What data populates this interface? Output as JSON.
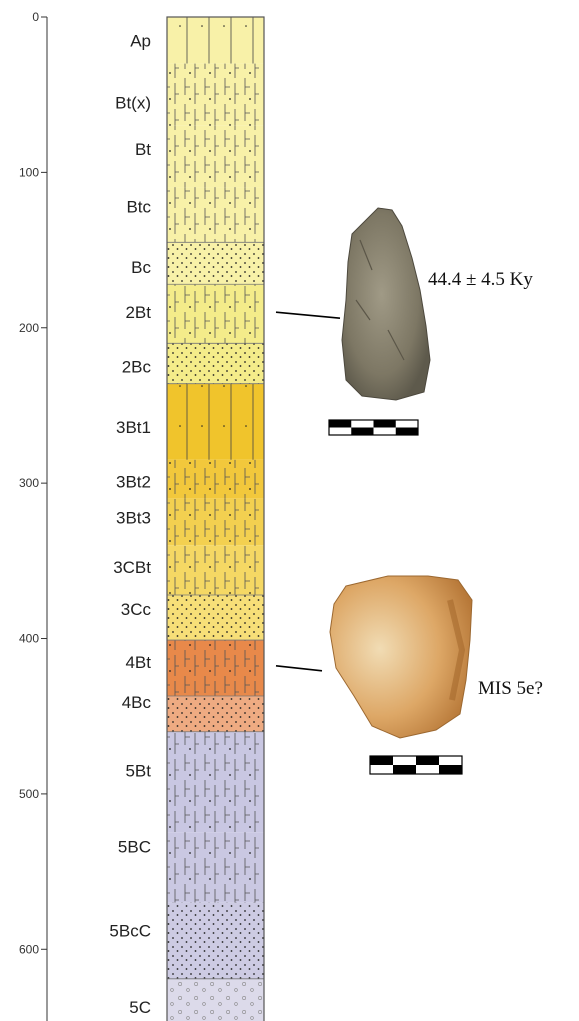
{
  "depth_axis": {
    "unit": "",
    "min": 0,
    "max": 650,
    "ticks": [
      0,
      100,
      200,
      300,
      400,
      500,
      600
    ]
  },
  "horizons": [
    {
      "label": "Ap",
      "top": 0,
      "bottom": 30,
      "label_depth": 15,
      "color": "#f8f1a8",
      "texture": "roots"
    },
    {
      "label": "Bt(x)",
      "top": 30,
      "bottom": 70,
      "label_depth": 55,
      "color": "#f8f1a8",
      "texture": "cracks"
    },
    {
      "label": "Bt",
      "top": 70,
      "bottom": 110,
      "label_depth": 85,
      "color": "#f8f1a8",
      "texture": "cracks"
    },
    {
      "label": "Btc",
      "top": 110,
      "bottom": 145,
      "label_depth": 122,
      "color": "#f8f1a8",
      "texture": "cracks"
    },
    {
      "label": "Bc",
      "top": 145,
      "bottom": 172,
      "label_depth": 161,
      "color": "#f8f1a8",
      "texture": "dots"
    },
    {
      "label": "2Bt",
      "top": 172,
      "bottom": 210,
      "label_depth": 190,
      "color": "#f4ec8a",
      "texture": "cracks"
    },
    {
      "label": "2Bc",
      "top": 210,
      "bottom": 236,
      "label_depth": 225,
      "color": "#f4ec8a",
      "texture": "dots"
    },
    {
      "label": "3Bt1",
      "top": 236,
      "bottom": 285,
      "label_depth": 264,
      "color": "#f0c42c",
      "texture": "roots"
    },
    {
      "label": "3Bt2",
      "top": 285,
      "bottom": 310,
      "label_depth": 299,
      "color": "#f2c83c",
      "texture": "cracks"
    },
    {
      "label": "3Bt3",
      "top": 310,
      "bottom": 340,
      "label_depth": 322,
      "color": "#f3d050",
      "texture": "cracks"
    },
    {
      "label": "3CBt",
      "top": 340,
      "bottom": 372,
      "label_depth": 354,
      "color": "#f5d864",
      "texture": "cracks"
    },
    {
      "label": "3Cc",
      "top": 372,
      "bottom": 401,
      "label_depth": 381,
      "color": "#f7df78",
      "texture": "dots"
    },
    {
      "label": "4Bt",
      "top": 401,
      "bottom": 437,
      "label_depth": 415,
      "color": "#e8894a",
      "texture": "cracks"
    },
    {
      "label": "4Bc",
      "top": 437,
      "bottom": 460,
      "label_depth": 441,
      "color": "#eeab82",
      "texture": "dots"
    },
    {
      "label": "5Bt",
      "top": 460,
      "bottom": 525,
      "label_depth": 485,
      "color": "#c9c7e2",
      "texture": "cracks"
    },
    {
      "label": "5BC",
      "top": 525,
      "bottom": 570,
      "label_depth": 534,
      "color": "#cac8e2",
      "texture": "cracks"
    },
    {
      "label": "5BcC",
      "top": 570,
      "bottom": 619,
      "label_depth": 588,
      "color": "#cdcbe3",
      "texture": "dots"
    },
    {
      "label": "5C",
      "top": 619,
      "bottom": 650,
      "label_depth": 637,
      "color": "#dcdaea",
      "texture": "pebbles"
    }
  ],
  "artifacts": [
    {
      "depth": 190,
      "label": "44.4 ± 4.5 Ky",
      "image": "flint-artifact-grey",
      "color": "#8a8470"
    },
    {
      "depth": 415,
      "label": "MIS 5e?",
      "image": "quartzite-artifact-orange",
      "color": "#d9a05a"
    }
  ]
}
